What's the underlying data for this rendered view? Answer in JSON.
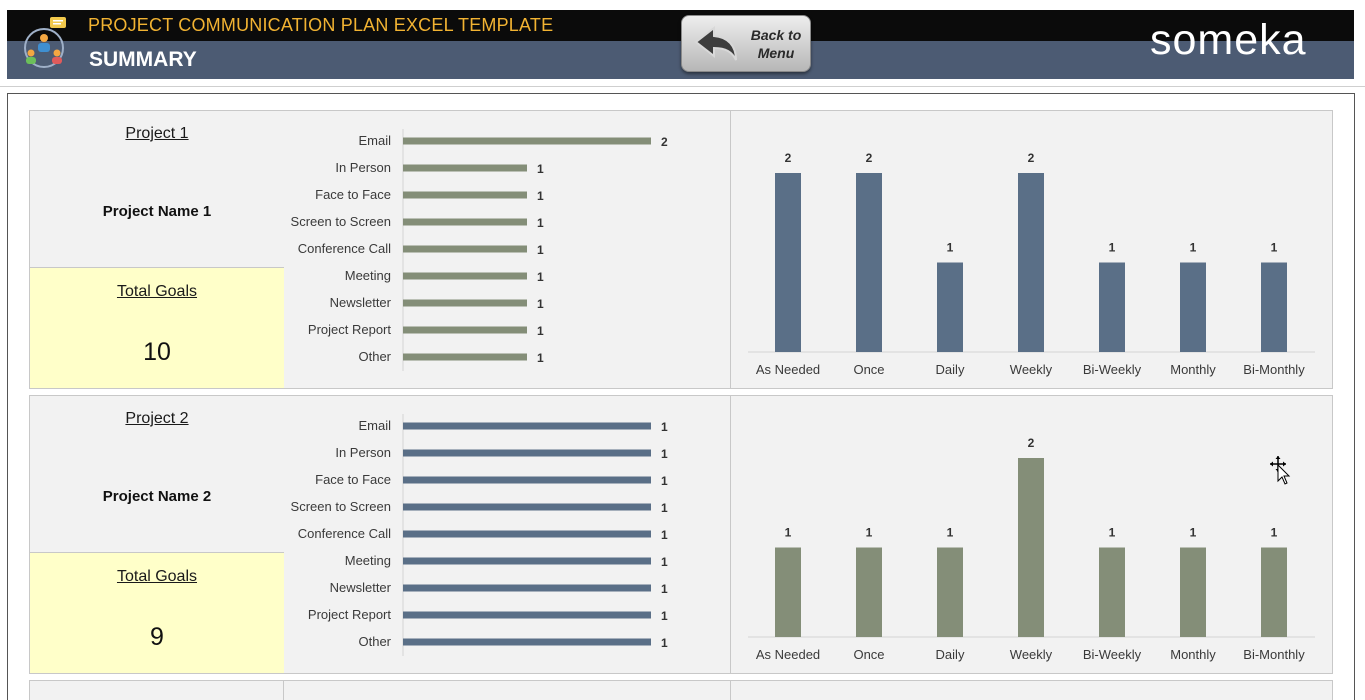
{
  "header": {
    "title": "PROJECT COMMUNICATION PLAN EXCEL TEMPLATE",
    "subtitle": "SUMMARY",
    "back_button_label": "Back to\nMenu",
    "brand": "someka",
    "colors": {
      "title": "#f2b332",
      "bar_top": "#0b0b0b",
      "bar_bottom": "#4c5b73"
    }
  },
  "projects": [
    {
      "label": "Project 1",
      "name": "Project Name 1",
      "goals_label": "Total Goals",
      "goals_value": "10",
      "info_fill": "#ffffc9"
    },
    {
      "label": "Project 2",
      "name": "Project Name 2",
      "goals_label": "Total Goals",
      "goals_value": "9",
      "info_fill": "#ffffc9"
    }
  ],
  "chart_data": [
    {
      "type": "bar",
      "orientation": "horizontal",
      "categories": [
        "Email",
        "In Person",
        "Face to Face",
        "Screen to Screen",
        "Conference Call",
        "Meeting",
        "Newsletter",
        "Project Report",
        "Other"
      ],
      "values": [
        2,
        1,
        1,
        1,
        1,
        1,
        1,
        1,
        1
      ],
      "xlim": [
        0,
        2
      ],
      "color": "#848e78"
    },
    {
      "type": "bar",
      "orientation": "vertical",
      "categories": [
        "As Needed",
        "Once",
        "Daily",
        "Weekly",
        "Bi-Weekly",
        "Monthly",
        "Bi-Monthly"
      ],
      "values": [
        2,
        2,
        1,
        2,
        1,
        1,
        1
      ],
      "ylim": [
        0,
        2
      ],
      "color": "#5a6f87"
    },
    {
      "type": "bar",
      "orientation": "horizontal",
      "categories": [
        "Email",
        "In Person",
        "Face to Face",
        "Screen to Screen",
        "Conference Call",
        "Meeting",
        "Newsletter",
        "Project Report",
        "Other"
      ],
      "values": [
        1,
        1,
        1,
        1,
        1,
        1,
        1,
        1,
        1
      ],
      "xlim": [
        0,
        1
      ],
      "color": "#5a6f87"
    },
    {
      "type": "bar",
      "orientation": "vertical",
      "categories": [
        "As Needed",
        "Once",
        "Daily",
        "Weekly",
        "Bi-Weekly",
        "Monthly",
        "Bi-Monthly"
      ],
      "values": [
        1,
        1,
        1,
        2,
        1,
        1,
        1
      ],
      "ylim": [
        0,
        2
      ],
      "color": "#848e78"
    }
  ]
}
